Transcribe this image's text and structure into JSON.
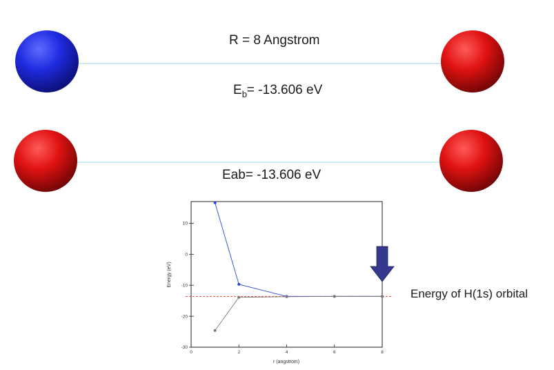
{
  "top_row": {
    "separation_label": "R = 8 Angstrom",
    "eb_prefix": "E",
    "eb_sub": "b",
    "eb_value": "= -13.606 eV",
    "left_atom_color": "#1f1fd6",
    "right_atom_color": "#d41313"
  },
  "bottom_row": {
    "energy_label": "Eab= -13.606 eV",
    "left_atom_color": "#d41313",
    "right_atom_color": "#d41313"
  },
  "bond_line_color": "#bfe3ee",
  "annotation": {
    "label": "Energy of H(1s) orbital",
    "arrow_color": "#34388f"
  },
  "chart_data": {
    "type": "line",
    "xlabel": "r (angstrom)",
    "ylabel": "Energy (eV)",
    "xlim": [
      0,
      8
    ],
    "ylim": [
      -30,
      17
    ],
    "x_ticks": [
      0,
      2,
      4,
      6,
      8
    ],
    "y_ticks": [
      -30,
      -20,
      -10,
      0,
      10
    ],
    "series": [
      {
        "color": "#2b45e0",
        "x": [
          1,
          2,
          4,
          6,
          8
        ],
        "y": [
          16.6,
          -9.7,
          -13.6,
          -13.6,
          -13.6
        ]
      },
      {
        "color": "#7a7a7a",
        "x": [
          1,
          2,
          4,
          6,
          8
        ],
        "y": [
          -24.6,
          -13.9,
          -13.7,
          -13.6,
          -13.6
        ]
      }
    ],
    "reference_line": {
      "y": -13.606,
      "color": "#e8453c",
      "style": "dashed"
    },
    "arrow_at_x": 8
  }
}
